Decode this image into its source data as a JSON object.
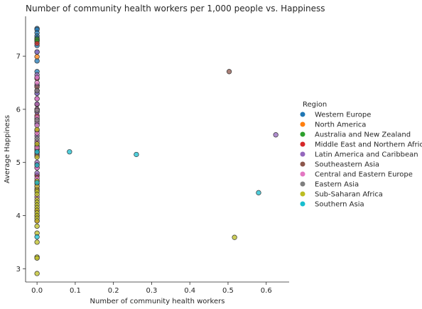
{
  "chart_data": {
    "type": "scatter",
    "title": "Number of community health workers per 1,000 people vs. Happiness",
    "xlabel": "Number of community health workers",
    "ylabel": "Average Happiness",
    "xlim": [
      -0.03,
      0.66
    ],
    "ylim": [
      2.75,
      7.75
    ],
    "xticks": [
      "0.0",
      "0.1",
      "0.2",
      "0.3",
      "0.4",
      "0.5",
      "0.6"
    ],
    "yticks": [
      "3",
      "4",
      "5",
      "6",
      "7"
    ],
    "grid": false,
    "legend": {
      "title": "Region",
      "placement": "right"
    },
    "series": [
      {
        "name": "Western Europe",
        "color": "#1f77b4",
        "points": [
          [
            0,
            7.52
          ],
          [
            0,
            7.5
          ],
          [
            0,
            7.44
          ],
          [
            0,
            7.38
          ],
          [
            0,
            7.34
          ],
          [
            0,
            7.3
          ],
          [
            0,
            7.2
          ],
          [
            0,
            7.08
          ],
          [
            0,
            6.91
          ],
          [
            0,
            6.71
          ],
          [
            0,
            6.45
          ],
          [
            0,
            6.3
          ],
          [
            0,
            5.99
          ],
          [
            0,
            5.73
          ],
          [
            0,
            5.2
          ],
          [
            0,
            4.76
          ]
        ]
      },
      {
        "name": "North America",
        "color": "#ff7f0e",
        "points": [
          [
            0,
            7.3
          ],
          [
            0,
            6.99
          ]
        ]
      },
      {
        "name": "Australia and New Zealand",
        "color": "#2ca02c",
        "points": [
          [
            0,
            7.32
          ],
          [
            0,
            7.28
          ]
        ]
      },
      {
        "name": "Middle East and Northern Africa",
        "color": "#d62728",
        "points": [
          [
            0,
            7.24
          ],
          [
            0,
            6.58
          ],
          [
            0,
            6.35
          ],
          [
            0,
            6.09
          ],
          [
            0,
            5.96
          ],
          [
            0,
            5.88
          ],
          [
            0,
            5.6
          ],
          [
            0,
            5.36
          ],
          [
            0,
            5.31
          ],
          [
            0,
            5.24
          ],
          [
            0,
            5.13
          ],
          [
            0,
            4.96
          ],
          [
            0,
            4.75
          ],
          [
            0,
            4.5
          ],
          [
            0,
            4.1
          ],
          [
            0,
            3.9
          ]
        ]
      },
      {
        "name": "Latin America and Caribbean",
        "color": "#9467bd",
        "points": [
          [
            0,
            7.08
          ],
          [
            0,
            6.65
          ],
          [
            0,
            6.6
          ],
          [
            0,
            6.45
          ],
          [
            0,
            6.35
          ],
          [
            0,
            6.3
          ],
          [
            0,
            6.2
          ],
          [
            0,
            6.1
          ],
          [
            0,
            6.0
          ],
          [
            0,
            5.95
          ],
          [
            0,
            5.82
          ],
          [
            0,
            5.5
          ],
          [
            0,
            5.25
          ],
          [
            0,
            5.0
          ],
          [
            0,
            4.9
          ],
          [
            0,
            4.8
          ],
          [
            0,
            4.65
          ],
          [
            0.625,
            5.52
          ]
        ]
      },
      {
        "name": "Southeastern Asia",
        "color": "#8c564b",
        "points": [
          [
            0,
            6.42
          ],
          [
            0,
            6.0
          ],
          [
            0,
            5.3
          ],
          [
            0,
            5.25
          ],
          [
            0,
            4.6
          ],
          [
            0,
            4.0
          ],
          [
            0.503,
            6.71
          ]
        ]
      },
      {
        "name": "Central and Eastern Europe",
        "color": "#e377c2",
        "points": [
          [
            0,
            6.6
          ],
          [
            0,
            6.5
          ],
          [
            0,
            6.2
          ],
          [
            0,
            6.0
          ],
          [
            0,
            5.85
          ],
          [
            0,
            5.77
          ],
          [
            0,
            5.7
          ],
          [
            0,
            5.55
          ],
          [
            0,
            5.4
          ],
          [
            0,
            5.28
          ],
          [
            0,
            5.15
          ],
          [
            0,
            4.9
          ],
          [
            0,
            4.7
          ],
          [
            0,
            4.55
          ],
          [
            0,
            4.35
          ]
        ]
      },
      {
        "name": "Eastern Asia",
        "color": "#7f7f7f",
        "points": [
          [
            0,
            6.35
          ],
          [
            0,
            5.98
          ],
          [
            0,
            5.8
          ],
          [
            0,
            5.45
          ],
          [
            0,
            5.18
          ]
        ]
      },
      {
        "name": "Sub-Saharan Africa",
        "color": "#bcbd22",
        "points": [
          [
            0,
            5.62
          ],
          [
            0,
            5.35
          ],
          [
            0,
            5.1
          ],
          [
            0,
            4.65
          ],
          [
            0,
            4.55
          ],
          [
            0,
            4.48
          ],
          [
            0,
            4.45
          ],
          [
            0,
            4.4
          ],
          [
            0,
            4.3
          ],
          [
            0,
            4.25
          ],
          [
            0,
            4.2
          ],
          [
            0,
            4.15
          ],
          [
            0,
            4.1
          ],
          [
            0,
            4.05
          ],
          [
            0,
            4.0
          ],
          [
            0,
            3.95
          ],
          [
            0,
            3.9
          ],
          [
            0,
            3.8
          ],
          [
            0,
            3.67
          ],
          [
            0,
            3.5
          ],
          [
            0,
            3.22
          ],
          [
            0,
            3.2
          ],
          [
            0,
            2.91
          ],
          [
            0.517,
            3.59
          ]
        ]
      },
      {
        "name": "Southern Asia",
        "color": "#17becf",
        "points": [
          [
            0,
            5.2
          ],
          [
            0,
            4.95
          ],
          [
            0,
            4.62
          ],
          [
            0,
            3.6
          ],
          [
            0.085,
            5.2
          ],
          [
            0.26,
            5.15
          ],
          [
            0.58,
            4.43
          ]
        ]
      }
    ]
  }
}
